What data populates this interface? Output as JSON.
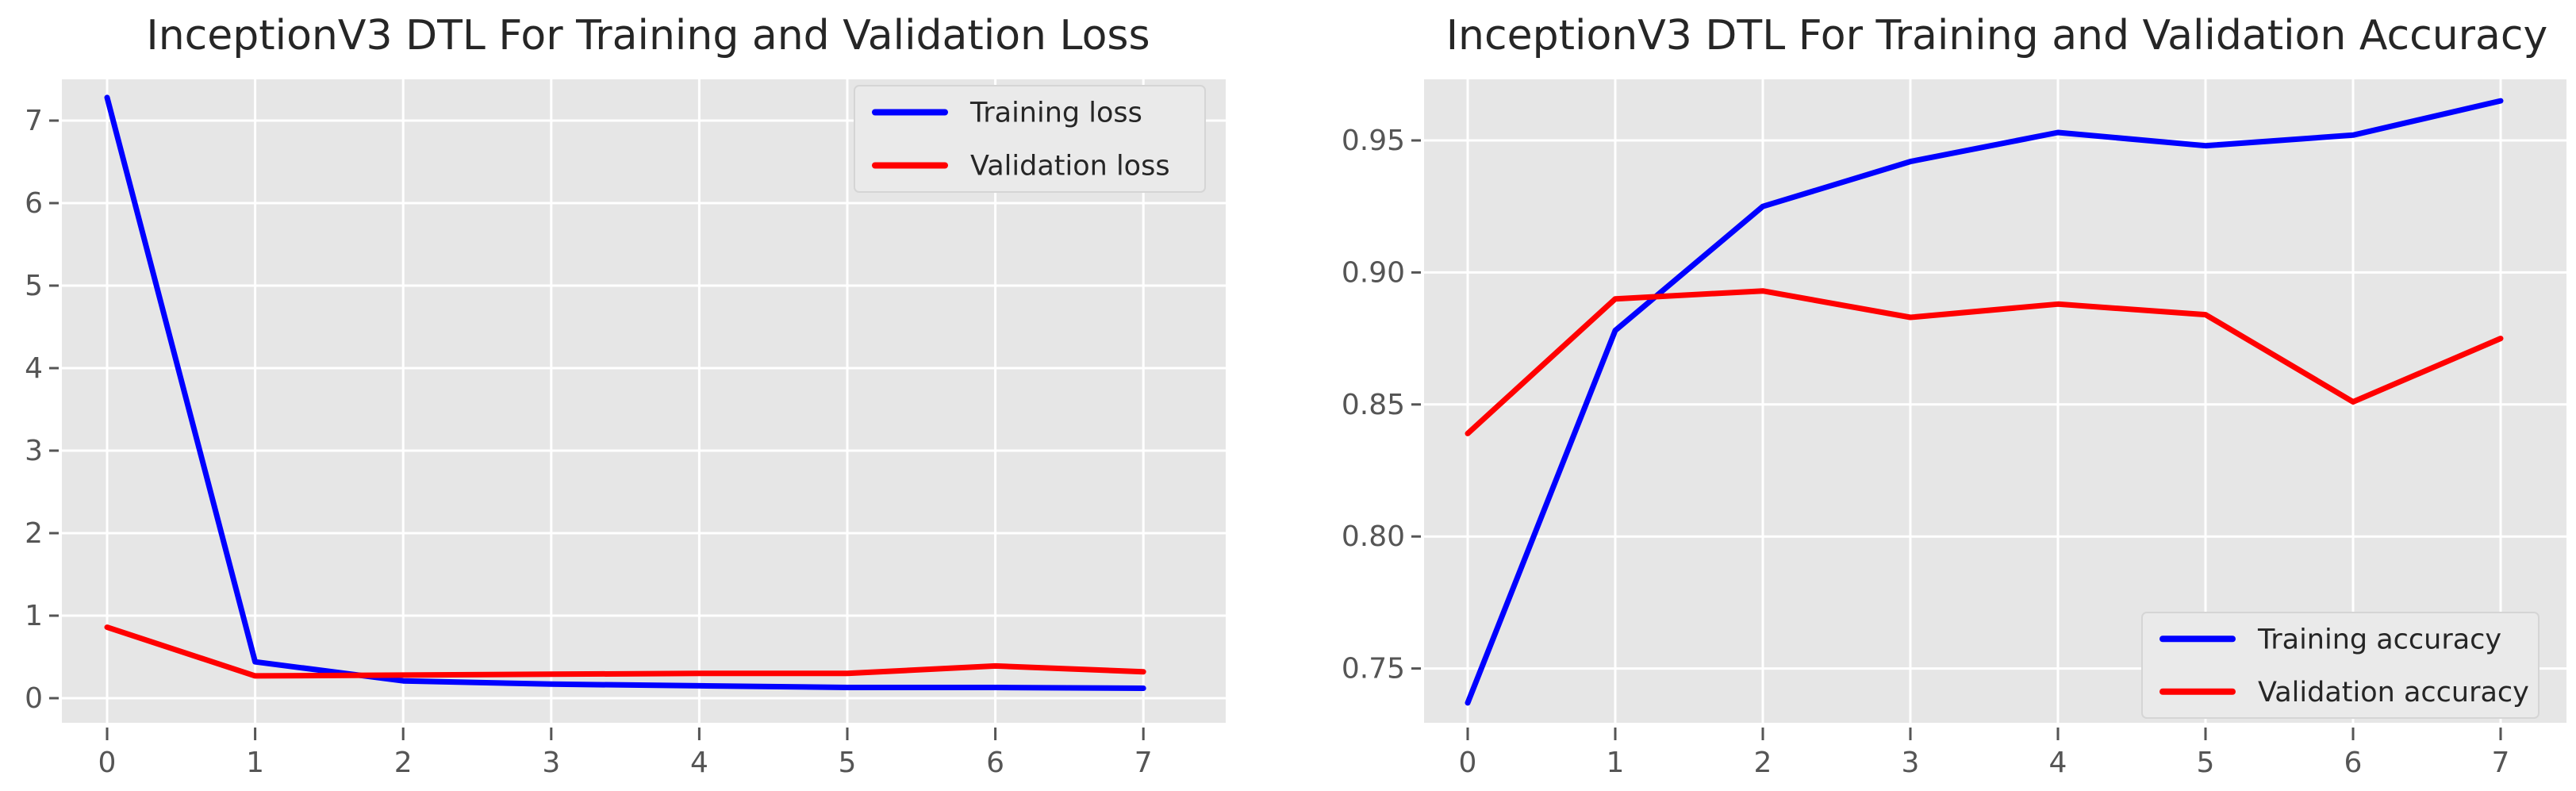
{
  "style": {
    "figure_bg": "#ffffff",
    "plot_bg": "#e6e6e6",
    "grid_color": "#ffffff",
    "tick_label_color": "#555555",
    "tick_mark_color": "#555555",
    "title_color": "#262626",
    "legend_bg": "#eaeaea",
    "legend_border": "#d5d5d5",
    "legend_text_color": "#262626",
    "training_color": "#0000ff",
    "validation_color": "#ff0000"
  },
  "chart_data": [
    {
      "type": "line",
      "title": "InceptionV3 DTL For Training and Validation Loss",
      "x": [
        0,
        1,
        2,
        3,
        4,
        5,
        6,
        7
      ],
      "xtick_labels": [
        "0",
        "1",
        "2",
        "3",
        "4",
        "5",
        "6",
        "7"
      ],
      "yticks": [
        0,
        1,
        2,
        3,
        4,
        5,
        6,
        7
      ],
      "ytick_labels": [
        "0",
        "1",
        "2",
        "3",
        "4",
        "5",
        "6",
        "7"
      ],
      "xlim": [
        -0.31,
        7.56
      ],
      "ylim": [
        -0.3,
        7.5
      ],
      "grid": true,
      "legend_position": "upper right",
      "series": [
        {
          "name": "Training loss",
          "color": "#0000ff",
          "values": [
            7.28,
            0.44,
            0.21,
            0.17,
            0.15,
            0.13,
            0.13,
            0.12
          ]
        },
        {
          "name": "Validation loss",
          "color": "#ff0000",
          "values": [
            0.86,
            0.27,
            0.28,
            0.29,
            0.3,
            0.3,
            0.39,
            0.32
          ]
        }
      ]
    },
    {
      "type": "line",
      "title": "InceptionV3 DTL For Training and Validation Accuracy",
      "x": [
        0,
        1,
        2,
        3,
        4,
        5,
        6,
        7
      ],
      "xtick_labels": [
        "0",
        "1",
        "2",
        "3",
        "4",
        "5",
        "6",
        "7"
      ],
      "yticks": [
        0.75,
        0.8,
        0.85,
        0.9,
        0.95
      ],
      "ytick_labels": [
        "0.75",
        "0.80",
        "0.85",
        "0.90",
        "0.95"
      ],
      "xlim": [
        -0.3,
        7.47
      ],
      "ylim": [
        0.729,
        0.973
      ],
      "grid": true,
      "legend_position": "lower right",
      "series": [
        {
          "name": "Training accuracy",
          "color": "#0000ff",
          "values": [
            0.737,
            0.878,
            0.925,
            0.942,
            0.953,
            0.948,
            0.952,
            0.965
          ]
        },
        {
          "name": "Validation accuracy",
          "color": "#ff0000",
          "values": [
            0.839,
            0.89,
            0.893,
            0.883,
            0.888,
            0.884,
            0.851,
            0.875
          ]
        }
      ]
    }
  ]
}
